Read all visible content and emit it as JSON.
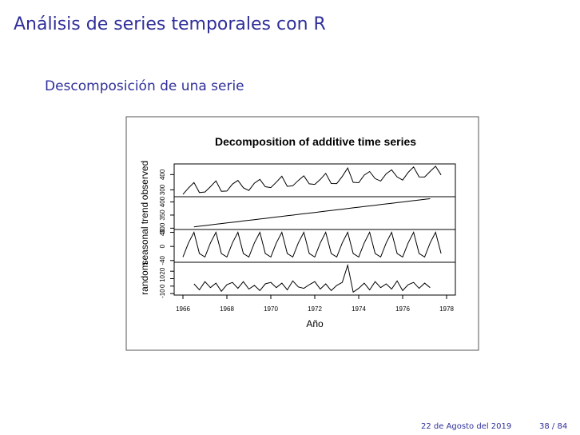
{
  "header": {
    "title": "Análisis de series temporales con R"
  },
  "subtitle": "Descomposición de una serie",
  "footer": {
    "date": "22 de Agosto del 2019",
    "page": "38 / 84"
  },
  "chart_data": [
    {
      "type": "line",
      "title": "Decomposition of additive time series",
      "ylabel": "observed",
      "color": "#000000",
      "x": [
        1966,
        1966.25,
        1966.5,
        1966.75,
        1967,
        1967.25,
        1967.5,
        1967.75,
        1968,
        1968.25,
        1968.5,
        1968.75,
        1969,
        1969.25,
        1969.5,
        1969.75,
        1970,
        1970.25,
        1970.5,
        1970.75,
        1971,
        1971.25,
        1971.5,
        1971.75,
        1972,
        1972.25,
        1972.5,
        1972.75,
        1973,
        1973.25,
        1973.5,
        1973.75,
        1974,
        1974.25,
        1974.5,
        1974.75,
        1975,
        1975.25,
        1975.5,
        1975.75,
        1976,
        1976.25,
        1976.5,
        1976.75,
        1977,
        1977.25,
        1977.5,
        1977.75
      ],
      "values": [
        270,
        312,
        348,
        282.5,
        286,
        320.5,
        359,
        290.5,
        292,
        337.5,
        362,
        313.5,
        296,
        343.5,
        369,
        320.5,
        315,
        350.5,
        389,
        322.5,
        327,
        361.5,
        392,
        339.5,
        336,
        368.5,
        408,
        341.5,
        341,
        387.5,
        443,
        349.5,
        347,
        396.5,
        420,
        373.5,
        358,
        405.5,
        431,
        384.5,
        364,
        414.5,
        450,
        384.5,
        384,
        420.5,
        455,
        397.5
      ],
      "xlim": [
        1965.6,
        1978.4
      ],
      "ylim": [
        255,
        470
      ],
      "yticks": [
        300,
        400
      ]
    },
    {
      "type": "line",
      "ylabel": "trend",
      "color": "#000000",
      "x": [
        1966,
        1966.25,
        1966.5,
        1966.75,
        1967,
        1967.25,
        1967.5,
        1967.75,
        1968,
        1968.25,
        1968.5,
        1968.75,
        1969,
        1969.25,
        1969.5,
        1969.75,
        1970,
        1970.25,
        1970.5,
        1970.75,
        1971,
        1971.25,
        1971.5,
        1971.75,
        1972,
        1972.25,
        1972.5,
        1972.75,
        1973,
        1973.25,
        1973.5,
        1973.75,
        1974,
        1974.25,
        1974.5,
        1974.75,
        1975,
        1975.25,
        1975.5,
        1975.75,
        1976,
        1976.25,
        1976.5,
        1976.75,
        1977,
        1977.25,
        1977.5,
        1977.75
      ],
      "values": [
        null,
        null,
        305,
        307.5,
        310,
        312.5,
        315,
        317.5,
        320,
        322.5,
        325,
        327.5,
        330,
        332.5,
        335,
        337.5,
        340,
        342.5,
        345,
        347.5,
        350,
        352.5,
        355,
        357.5,
        360,
        362.5,
        365,
        367.5,
        370,
        372.5,
        375,
        377.5,
        380,
        382.5,
        385,
        387.5,
        390,
        392.5,
        395,
        397.5,
        400,
        402.5,
        405,
        407.5,
        410,
        412.5,
        null,
        null
      ],
      "xlim": [
        1965.6,
        1978.4
      ],
      "ylim": [
        295,
        420
      ],
      "yticks": [
        300,
        350,
        400
      ]
    },
    {
      "type": "line",
      "ylabel": "seasonal",
      "color": "#000000",
      "x": [
        1966,
        1966.25,
        1966.5,
        1966.75,
        1967,
        1967.25,
        1967.5,
        1967.75,
        1968,
        1968.25,
        1968.5,
        1968.75,
        1969,
        1969.25,
        1969.5,
        1969.75,
        1970,
        1970.25,
        1970.5,
        1970.75,
        1971,
        1971.25,
        1971.5,
        1971.75,
        1972,
        1972.25,
        1972.5,
        1972.75,
        1973,
        1973.25,
        1973.5,
        1973.75,
        1974,
        1974.25,
        1974.5,
        1974.75,
        1975,
        1975.25,
        1975.5,
        1975.75,
        1976,
        1976.25,
        1976.5,
        1976.75,
        1977,
        1977.25,
        1977.5,
        1977.75
      ],
      "values": [
        -30,
        10,
        40,
        -20,
        -30,
        10,
        40,
        -20,
        -30,
        10,
        40,
        -20,
        -30,
        10,
        40,
        -20,
        -30,
        10,
        40,
        -20,
        -30,
        10,
        40,
        -20,
        -30,
        10,
        40,
        -20,
        -30,
        10,
        40,
        -20,
        -30,
        10,
        40,
        -20,
        -30,
        10,
        40,
        -20,
        -30,
        10,
        40,
        -20,
        -30,
        10,
        40,
        -20
      ],
      "xlim": [
        1965.6,
        1978.4
      ],
      "ylim": [
        -45,
        48
      ],
      "yticks": [
        -40,
        0,
        40
      ]
    },
    {
      "type": "line",
      "ylabel": "random",
      "xlabel": "Año",
      "color": "#000000",
      "x": [
        1966,
        1966.25,
        1966.5,
        1966.75,
        1967,
        1967.25,
        1967.5,
        1967.75,
        1968,
        1968.25,
        1968.5,
        1968.75,
        1969,
        1969.25,
        1969.5,
        1969.75,
        1970,
        1970.25,
        1970.5,
        1970.75,
        1971,
        1971.25,
        1971.5,
        1971.75,
        1972,
        1972.25,
        1972.5,
        1972.75,
        1973,
        1973.25,
        1973.5,
        1973.75,
        1974,
        1974.25,
        1974.5,
        1974.75,
        1975,
        1975.25,
        1975.5,
        1975.75,
        1976,
        1976.25,
        1976.5,
        1976.75,
        1977,
        1977.25,
        1977.5,
        1977.75
      ],
      "values": [
        null,
        null,
        3,
        -5,
        6,
        -2,
        4,
        -7,
        2,
        5,
        -3,
        6,
        -4,
        1,
        -6,
        3,
        5,
        -2,
        4,
        -5,
        7,
        -1,
        -3,
        2,
        6,
        -4,
        3,
        -6,
        1,
        5,
        28,
        -8,
        -3,
        4,
        -5,
        6,
        -2,
        3,
        -4,
        7,
        -6,
        2,
        5,
        -3,
        4,
        -2,
        null,
        null
      ],
      "xlim": [
        1965.6,
        1978.4
      ],
      "ylim": [
        -12,
        32
      ],
      "yticks": [
        -10,
        0,
        10,
        20
      ],
      "xticks": [
        1966,
        1968,
        1970,
        1972,
        1974,
        1976,
        1978
      ]
    }
  ]
}
